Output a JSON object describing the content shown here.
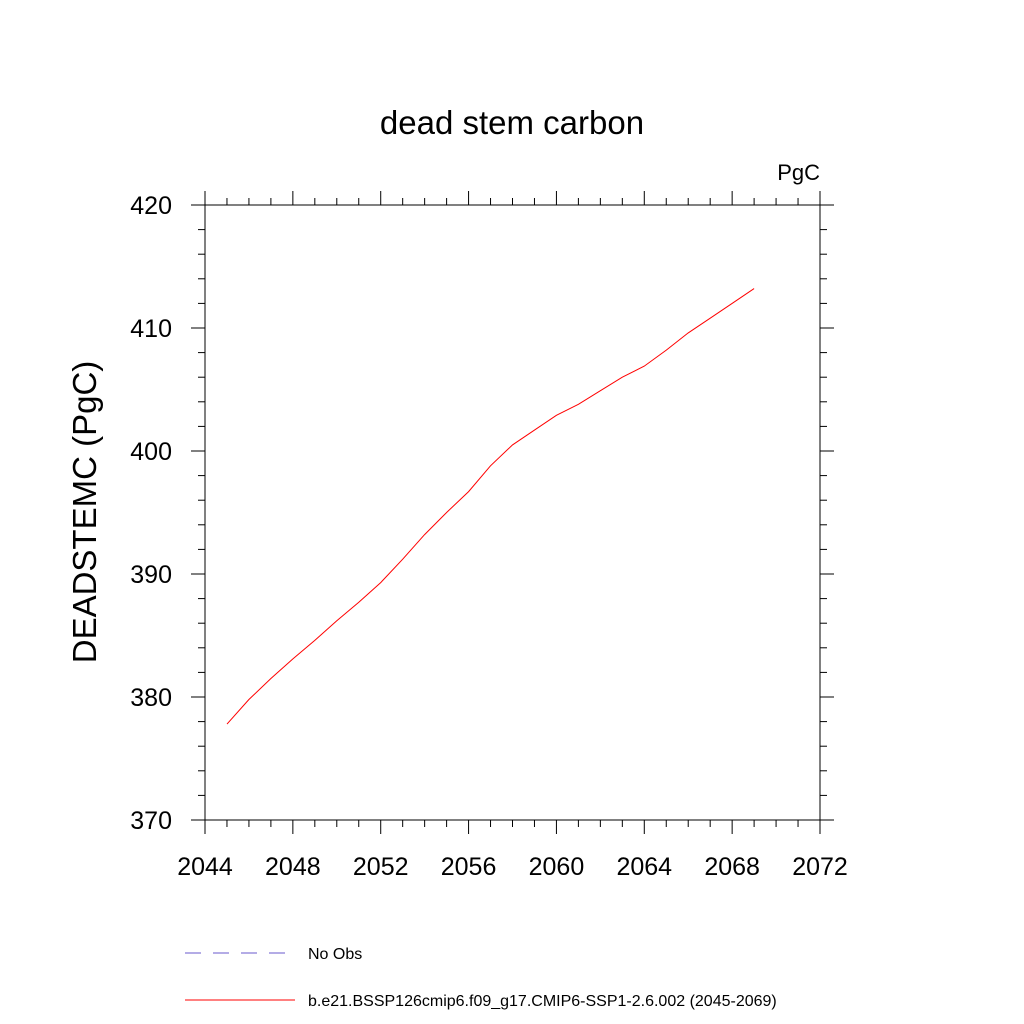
{
  "chart_data": {
    "type": "line",
    "title": "dead stem carbon",
    "units_label": "PgC",
    "ylabel": "DEADSTEMC  (PgC)",
    "xlabel": "",
    "xlim": [
      2044,
      2072
    ],
    "ylim": [
      370,
      420
    ],
    "x_ticks": [
      2044,
      2048,
      2052,
      2056,
      2060,
      2064,
      2068,
      2072
    ],
    "y_ticks": [
      370,
      380,
      390,
      400,
      410,
      420
    ],
    "x_tick_labels": [
      "2044",
      "2048",
      "2052",
      "2056",
      "2060",
      "2064",
      "2068",
      "2072"
    ],
    "y_tick_labels": [
      "370",
      "380",
      "390",
      "400",
      "410",
      "420"
    ],
    "grid": false,
    "legend_position": "bottom",
    "series": [
      {
        "name": "b.e21.BSSP126cmip6.f09_g17.CMIP6-SSP1-2.6.002 (2045-2069)",
        "color": "#ff0000",
        "style": "solid",
        "x": [
          2045,
          2046,
          2047,
          2048,
          2049,
          2050,
          2051,
          2052,
          2053,
          2054,
          2055,
          2056,
          2057,
          2058,
          2059,
          2060,
          2061,
          2062,
          2063,
          2064,
          2065,
          2066,
          2067,
          2068,
          2069
        ],
        "y": [
          377.8,
          379.8,
          381.5,
          383.1,
          384.6,
          386.2,
          387.7,
          389.3,
          391.2,
          393.2,
          395.0,
          396.7,
          398.8,
          400.5,
          401.7,
          402.9,
          403.8,
          404.9,
          406.0,
          406.9,
          408.2,
          409.6,
          410.8,
          412.0,
          413.2
        ]
      },
      {
        "name": "No Obs",
        "color": "#6a5acd",
        "style": "dashed",
        "x": [],
        "y": []
      }
    ]
  }
}
